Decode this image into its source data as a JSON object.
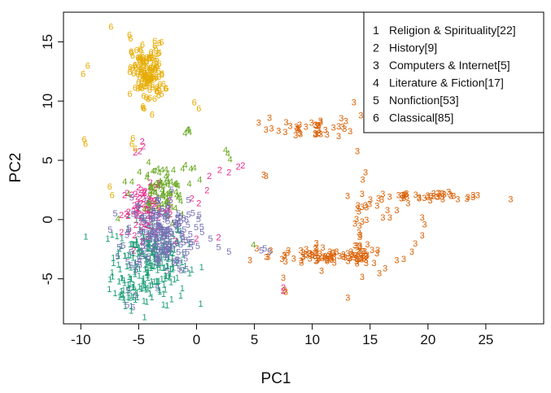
{
  "chart_data": {
    "type": "scatter",
    "title": "",
    "xlabel": "PC1",
    "ylabel": "PC2",
    "xlim": [
      -11.5,
      30
    ],
    "ylim": [
      -8.8,
      17.5
    ],
    "x_ticks": [
      -10,
      -5,
      0,
      5,
      10,
      15,
      20,
      25
    ],
    "y_ticks": [
      -5,
      0,
      5,
      10,
      15
    ],
    "grid": false,
    "legend_position": "top-right",
    "marker": "class-number digit",
    "series": [
      {
        "name": "Religion & Spirituality[22]",
        "label": "1",
        "color": "#1b9e77",
        "clusters": [
          {
            "cx": -4.0,
            "cy": -3.5,
            "sx": 1.6,
            "sy": 1.8,
            "n": 230
          },
          {
            "cx": -5.8,
            "cy": -6.0,
            "sx": 0.6,
            "sy": 0.6,
            "n": 20
          }
        ],
        "points": [
          [
            -6.5,
            -2.2
          ],
          [
            -7.2,
            -3.2
          ],
          [
            -6.7,
            -5.2
          ],
          [
            -4.3,
            -6.9
          ],
          [
            -3.0,
            -5.0
          ]
        ]
      },
      {
        "name": "History[9]",
        "label": "2",
        "color": "#e7298a",
        "clusters": [
          {
            "cx": -4.3,
            "cy": 0.8,
            "sx": 1.1,
            "sy": 1.0,
            "n": 80
          }
        ],
        "points": [
          [
            -4.6,
            6.2
          ],
          [
            -4.9,
            5.8
          ],
          [
            -5.3,
            5.7
          ],
          [
            -4.7,
            6.6
          ],
          [
            0.9,
            2.5
          ],
          [
            1.1,
            3.7
          ],
          [
            2.0,
            4.2
          ],
          [
            2.8,
            4.0
          ],
          [
            3.6,
            4.5
          ],
          [
            4.0,
            4.6
          ],
          [
            0.2,
            1.4
          ],
          [
            -0.4,
            1.8
          ],
          [
            0.0,
            -1.6
          ],
          [
            1.9,
            -1.5
          ],
          [
            7.5,
            -5.7
          ],
          [
            7.5,
            -6.0
          ]
        ]
      },
      {
        "name": "Computers & Internet[5]",
        "label": "3",
        "color": "#d95f02",
        "clusters": [
          {
            "cx": 11.5,
            "cy": -3.1,
            "sx": 2.6,
            "sy": 0.35,
            "n": 90
          },
          {
            "cx": 14.2,
            "cy": -1.5,
            "sx": 0.5,
            "sy": 2.0,
            "n": 30
          },
          {
            "cx": 10.5,
            "cy": 7.8,
            "sx": 1.8,
            "sy": 0.4,
            "n": 40
          },
          {
            "cx": 20.0,
            "cy": 2.0,
            "sx": 3.0,
            "sy": 0.15,
            "n": 45
          }
        ],
        "points": [
          [
            6.3,
            8.6
          ],
          [
            6.0,
            7.6
          ],
          [
            5.8,
            3.8
          ],
          [
            6.0,
            3.7
          ],
          [
            13.6,
            9.9
          ],
          [
            14.2,
            8.8
          ],
          [
            13.9,
            5.8
          ],
          [
            14.6,
            4.0
          ],
          [
            14.3,
            2.2
          ],
          [
            15.6,
            1.2
          ],
          [
            16.5,
            0.8
          ],
          [
            17.3,
            0.8
          ],
          [
            16.1,
            0.2
          ],
          [
            16.7,
            0.2
          ],
          [
            19.5,
            0.2
          ],
          [
            19.7,
            -0.4
          ],
          [
            19.5,
            -1.3
          ],
          [
            18.9,
            -2.0
          ],
          [
            18.6,
            -2.7
          ],
          [
            17.9,
            -3.3
          ],
          [
            17.3,
            -3.4
          ],
          [
            16.3,
            -4.1
          ],
          [
            15.8,
            -4.5
          ],
          [
            10.8,
            -4.3
          ],
          [
            7.5,
            -4.9
          ],
          [
            7.6,
            -5.9
          ],
          [
            7.7,
            -6.1
          ],
          [
            6.4,
            -2.6
          ],
          [
            5.2,
            -2.4
          ]
        ]
      },
      {
        "name": "Literature & Fiction[17]",
        "label": "4",
        "color": "#66a61e",
        "clusters": [
          {
            "cx": -3.2,
            "cy": 2.6,
            "sx": 1.1,
            "sy": 1.0,
            "n": 55
          },
          {
            "cx": -2.6,
            "cy": 1.3,
            "sx": 0.7,
            "sy": 0.9,
            "n": 20
          }
        ],
        "points": [
          [
            -0.7,
            7.6
          ],
          [
            -0.8,
            7.6
          ],
          [
            -1.0,
            7.3
          ],
          [
            -0.6,
            7.4
          ],
          [
            2.5,
            5.9
          ],
          [
            2.7,
            5.6
          ],
          [
            2.9,
            5.1
          ],
          [
            -2.5,
            3.9
          ],
          [
            -2.0,
            4.2
          ],
          [
            -1.2,
            4.3
          ],
          [
            -0.5,
            4.3
          ],
          [
            -0.2,
            4.4
          ],
          [
            -6.2,
            3.2
          ],
          [
            -5.6,
            3.2
          ],
          [
            -5.9,
            2.2
          ],
          [
            -6.8,
            0.1
          ],
          [
            4.9,
            -2.1
          ]
        ]
      },
      {
        "name": "Nonfiction[53]",
        "label": "5",
        "color": "#7570b3",
        "clusters": [
          {
            "cx": -3.1,
            "cy": -1.2,
            "sx": 1.5,
            "sy": 1.6,
            "n": 200
          }
        ],
        "points": [
          [
            1.2,
            -1.6
          ],
          [
            1.9,
            -2.3
          ],
          [
            2.8,
            -2.7
          ],
          [
            -6.7,
            -2.3
          ],
          [
            -5.9,
            -6.0
          ],
          [
            -5.3,
            -6.4
          ],
          [
            -6.0,
            -7.2
          ],
          [
            -5.5,
            -7.4
          ],
          [
            5.6,
            -2.6
          ],
          [
            6.3,
            -2.7
          ],
          [
            5.9,
            -2.4
          ]
        ]
      },
      {
        "name": "Classical[85]",
        "label": "6",
        "color": "#e6ab02",
        "clusters": [
          {
            "cx": -4.2,
            "cy": 12.3,
            "sx": 0.7,
            "sy": 1.3,
            "n": 140
          }
        ],
        "points": [
          [
            -7.4,
            16.3
          ],
          [
            -5.8,
            15.6
          ],
          [
            -5.7,
            15.3
          ],
          [
            -5.2,
            14.3
          ],
          [
            -9.8,
            12.3
          ],
          [
            -9.4,
            13.0
          ],
          [
            -9.7,
            6.8
          ],
          [
            -9.6,
            6.4
          ],
          [
            -5.5,
            6.9
          ],
          [
            -5.6,
            6.4
          ],
          [
            -7.5,
            2.8
          ],
          [
            -7.3,
            2.1
          ],
          [
            -5.3,
            6.0
          ],
          [
            -0.2,
            9.9
          ],
          [
            0.2,
            9.4
          ],
          [
            -3.6,
            12.8
          ]
        ]
      }
    ]
  }
}
